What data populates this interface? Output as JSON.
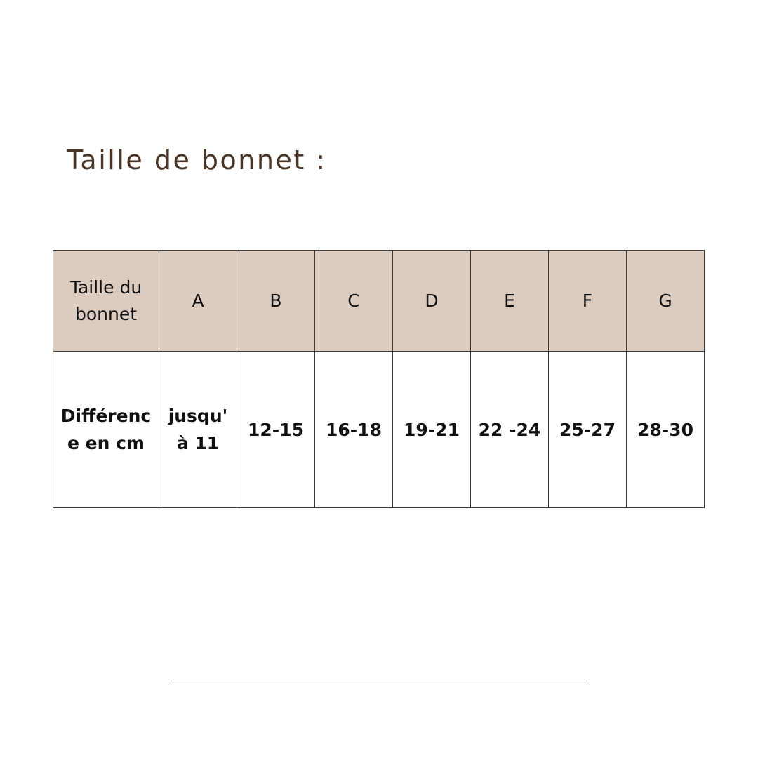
{
  "title": "Taille de bonnet :",
  "table": {
    "header": {
      "label_lines": [
        "Taille du",
        "bonnet"
      ],
      "cups": [
        "A",
        "B",
        "C",
        "D",
        "E",
        "F",
        "G"
      ]
    },
    "row": {
      "label_lines": [
        "Différenc",
        "e en cm"
      ],
      "first_value_lines": [
        "jusqu'",
        "à 11"
      ],
      "values": [
        "12-15",
        "16-18",
        "19-21",
        "22 -24",
        "25-27",
        "28-30"
      ]
    }
  },
  "colors": {
    "header_bg": "#dccbbf",
    "title": "#4a3426"
  }
}
